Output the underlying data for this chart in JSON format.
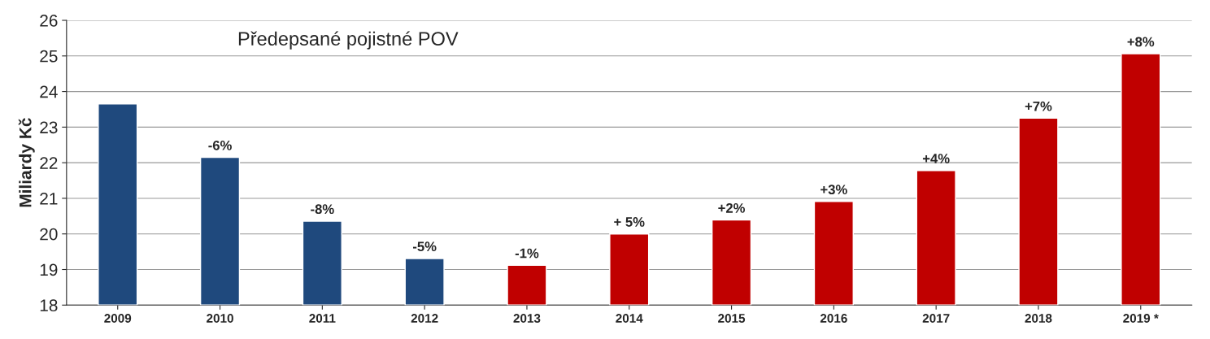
{
  "chart_data": {
    "type": "bar",
    "title": "Předepsané pojistné POV",
    "ylabel": "Miliardy Kč",
    "categories": [
      "2009",
      "2010",
      "2011",
      "2012",
      "2013",
      "2014",
      "2015",
      "2016",
      "2017",
      "2018",
      "2019 *"
    ],
    "values": [
      23.65,
      22.15,
      20.36,
      19.31,
      19.12,
      20.0,
      20.39,
      20.91,
      21.78,
      23.25,
      25.06
    ],
    "colors": [
      "#1f497d",
      "#1f497d",
      "#1f497d",
      "#1f497d",
      "#c00000",
      "#c00000",
      "#c00000",
      "#c00000",
      "#c00000",
      "#c00000",
      "#c00000"
    ],
    "annotations": [
      {
        "text": "-6%",
        "x": "2010",
        "y": 22.15
      },
      {
        "text": "-8%",
        "x": "2011",
        "y": 20.36
      },
      {
        "text": "-5%",
        "x": "2012",
        "y": 19.31
      },
      {
        "text": "-1%",
        "x": "2013",
        "y": 19.12
      },
      {
        "text": "+ 5%",
        "x": "2014",
        "y": 20.0
      },
      {
        "text": "+2%",
        "x": "2015",
        "y": 20.39
      },
      {
        "text": "+3%",
        "x": "2016",
        "y": 20.91
      },
      {
        "text": "+4%",
        "x": "2017",
        "y": 21.78
      },
      {
        "text": "+7%",
        "x": "2018",
        "y": 23.25
      },
      {
        "text": "+8%",
        "x": "2019 *",
        "y": 25.06
      }
    ],
    "ylim": [
      18,
      26
    ],
    "yticks": [
      18,
      19,
      20,
      21,
      22,
      23,
      24,
      25,
      26
    ],
    "grid": "y"
  }
}
